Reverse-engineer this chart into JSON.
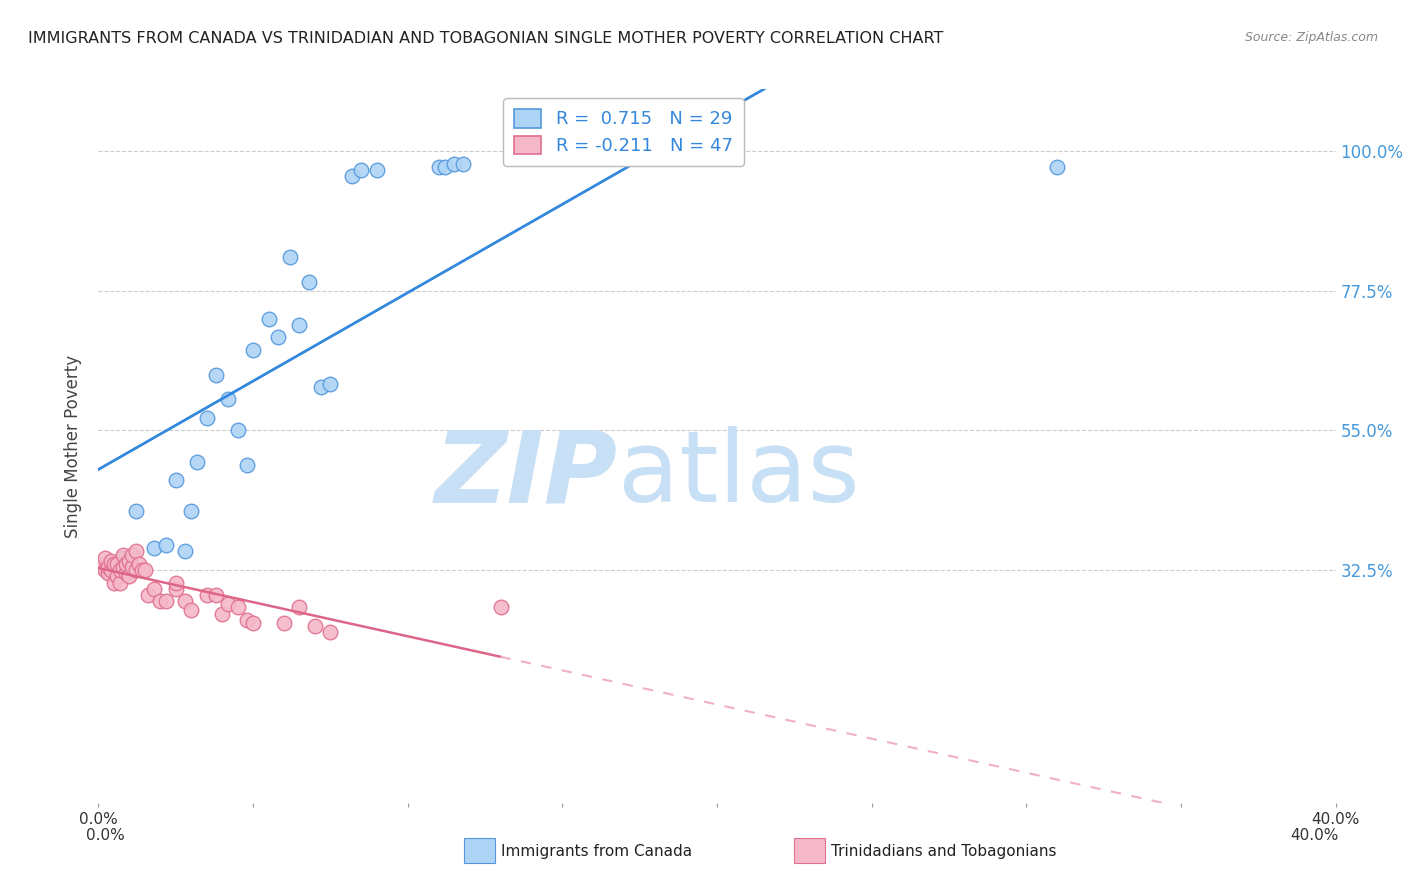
{
  "title": "IMMIGRANTS FROM CANADA VS TRINIDADIAN AND TOBAGONIAN SINGLE MOTHER POVERTY CORRELATION CHART",
  "source": "Source: ZipAtlas.com",
  "ylabel": "Single Mother Poverty",
  "ytick_labels": [
    "100.0%",
    "77.5%",
    "55.0%",
    "32.5%"
  ],
  "ytick_values": [
    1.0,
    0.775,
    0.55,
    0.325
  ],
  "xlim": [
    0.0,
    0.4
  ],
  "ylim": [
    -0.05,
    1.1
  ],
  "legend_r1": "R =  0.715",
  "legend_n1": "N = 29",
  "legend_r2": "R = -0.211",
  "legend_n2": "N = 47",
  "watermark_zip": "ZIP",
  "watermark_atlas": "atlas",
  "blue_scatter_x": [
    0.008,
    0.012,
    0.018,
    0.022,
    0.025,
    0.028,
    0.03,
    0.032,
    0.035,
    0.038,
    0.042,
    0.045,
    0.048,
    0.05,
    0.055,
    0.058,
    0.062,
    0.065,
    0.068,
    0.072,
    0.075,
    0.082,
    0.085,
    0.09,
    0.11,
    0.112,
    0.115,
    0.118,
    0.31
  ],
  "blue_scatter_y": [
    0.345,
    0.42,
    0.36,
    0.365,
    0.47,
    0.355,
    0.42,
    0.5,
    0.57,
    0.64,
    0.6,
    0.55,
    0.495,
    0.68,
    0.73,
    0.7,
    0.83,
    0.72,
    0.79,
    0.62,
    0.625,
    0.96,
    0.97,
    0.97,
    0.975,
    0.975,
    0.98,
    0.98,
    0.975
  ],
  "pink_scatter_x": [
    0.0,
    0.001,
    0.002,
    0.002,
    0.003,
    0.003,
    0.004,
    0.004,
    0.005,
    0.005,
    0.006,
    0.006,
    0.007,
    0.007,
    0.008,
    0.008,
    0.009,
    0.009,
    0.01,
    0.01,
    0.011,
    0.011,
    0.012,
    0.012,
    0.013,
    0.014,
    0.015,
    0.016,
    0.018,
    0.02,
    0.022,
    0.025,
    0.025,
    0.028,
    0.03,
    0.035,
    0.038,
    0.04,
    0.042,
    0.045,
    0.048,
    0.05,
    0.06,
    0.065,
    0.07,
    0.075,
    0.13
  ],
  "pink_scatter_y": [
    0.335,
    0.33,
    0.325,
    0.345,
    0.32,
    0.33,
    0.325,
    0.34,
    0.305,
    0.335,
    0.315,
    0.335,
    0.305,
    0.325,
    0.33,
    0.35,
    0.32,
    0.335,
    0.315,
    0.34,
    0.33,
    0.35,
    0.355,
    0.325,
    0.335,
    0.325,
    0.325,
    0.285,
    0.295,
    0.275,
    0.275,
    0.295,
    0.305,
    0.275,
    0.26,
    0.285,
    0.285,
    0.255,
    0.27,
    0.265,
    0.245,
    0.24,
    0.24,
    0.265,
    0.235,
    0.225,
    0.265
  ],
  "blue_color": "#aed4f5",
  "pink_color": "#f5b8c8",
  "blue_edge_color": "#5599dd",
  "pink_edge_color": "#e07090",
  "blue_line_color": "#3388dd",
  "pink_line_color": "#dd6688",
  "pink_dash_color": "#f0b0c5",
  "grid_color": "#cccccc",
  "background_color": "#ffffff",
  "title_color": "#222222",
  "axis_label_color": "#444444",
  "right_axis_color": "#4499dd",
  "watermark_color_zip": "#c8e0f5",
  "watermark_color_atlas": "#c8e0f5"
}
